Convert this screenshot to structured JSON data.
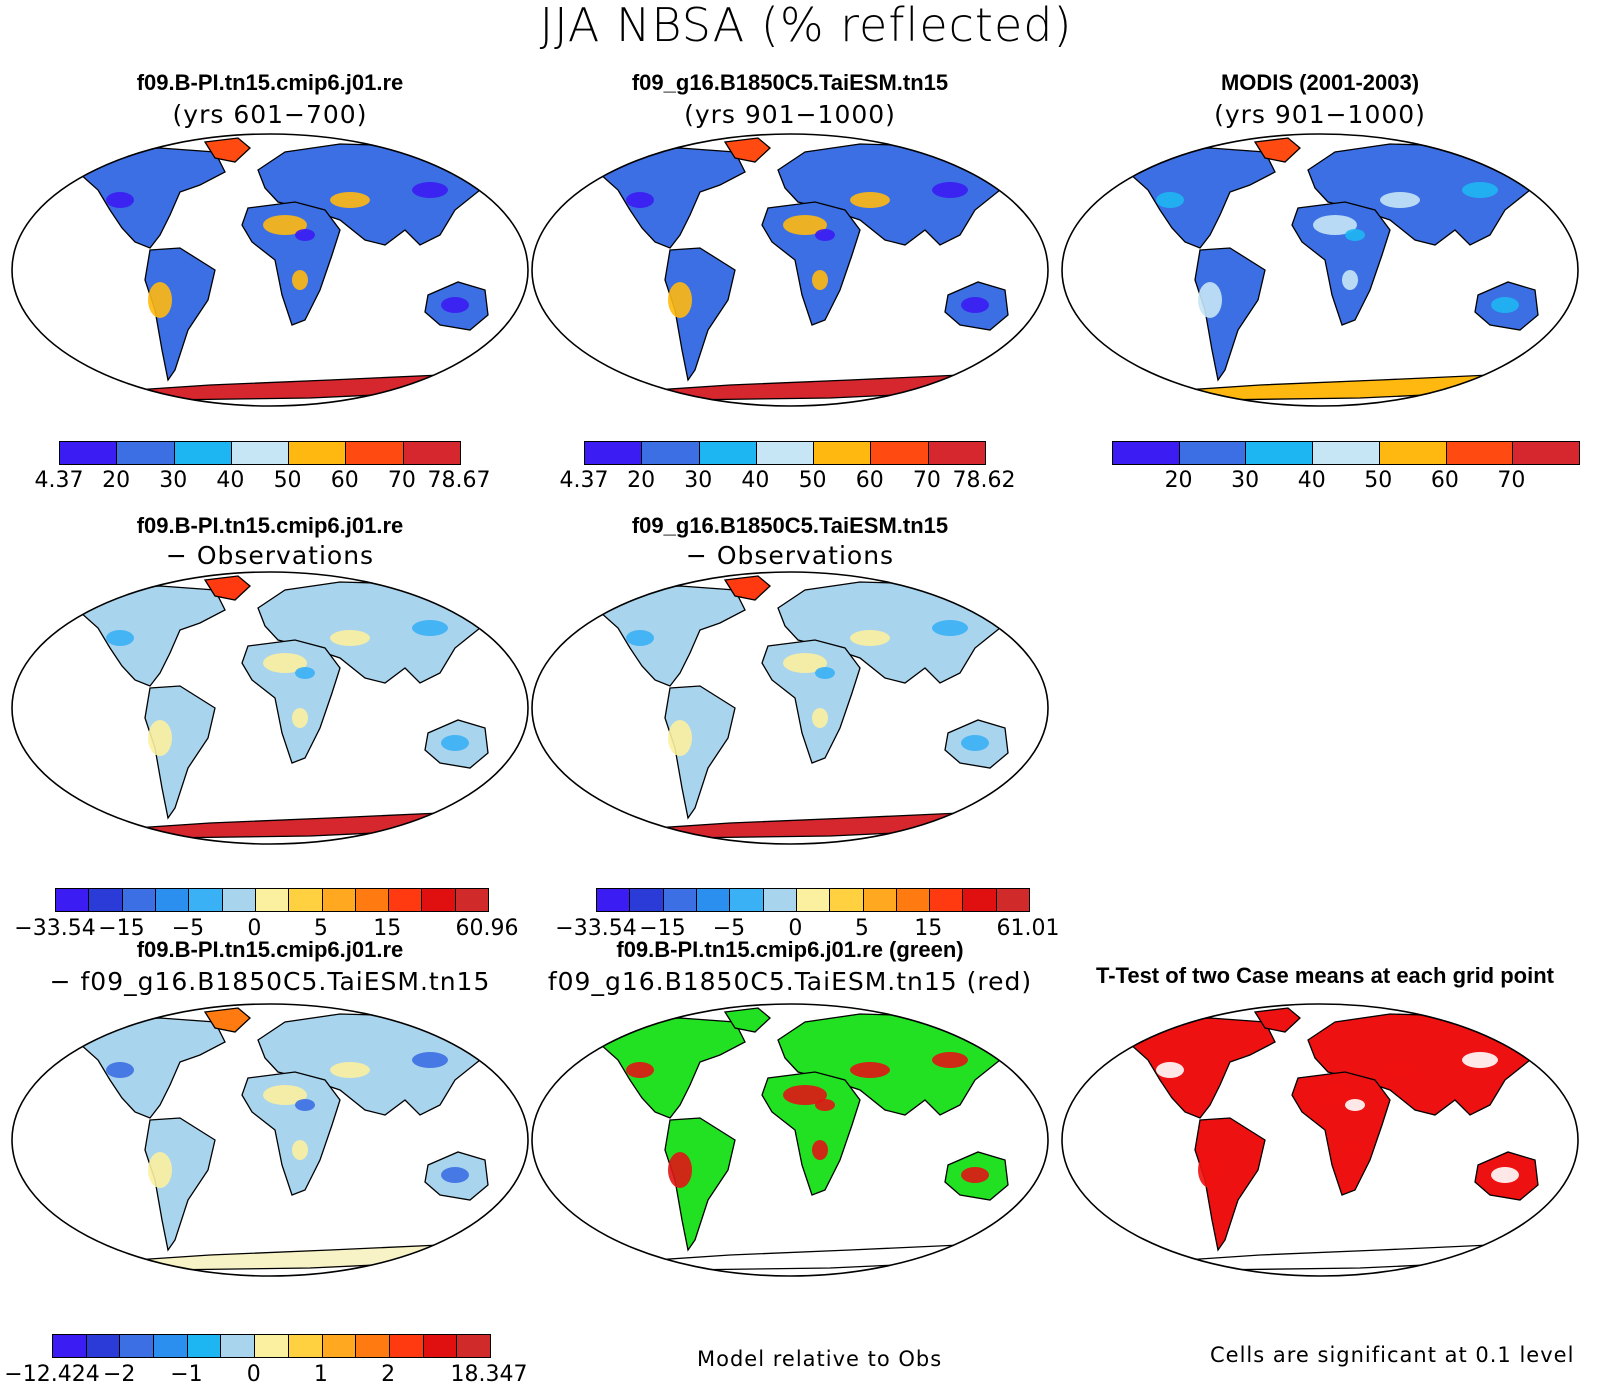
{
  "title": "JJA NBSA (% reflected)",
  "panels": [
    {
      "title": "f09.B-PI.tn15.cmip6.j01.re",
      "subtitle": "(yrs 601−700)",
      "style": "mean"
    },
    {
      "title": "f09_g16.B1850C5.TaiESM.tn15",
      "subtitle": "(yrs 901−1000)",
      "style": "mean"
    },
    {
      "title": "MODIS (2001-2003)",
      "subtitle": "(yrs 901−1000)",
      "style": "obs"
    },
    {
      "title": "f09.B-PI.tn15.cmip6.j01.re",
      "subtitle": "− Observations",
      "style": "diff"
    },
    {
      "title": "f09_g16.B1850C5.TaiESM.tn15",
      "subtitle": "− Observations",
      "style": "diff"
    },
    {
      "title": "f09.B-PI.tn15.cmip6.j01.re",
      "subtitle": "− f09_g16.B1850C5.TaiESM.tn15",
      "style": "casediff"
    },
    {
      "title": "f09.B-PI.tn15.cmip6.j01.re (green)",
      "subtitle": "f09_g16.B1850C5.TaiESM.tn15 (red)",
      "style": "greenred"
    },
    {
      "title": "T-Test of two Case means at each grid point",
      "subtitle": "",
      "style": "ttest"
    }
  ],
  "colorbars": {
    "mean1": {
      "colors": [
        "#3b1cf2",
        "#3c6fe3",
        "#1eb6f2",
        "#c6e6f5",
        "#ffb810",
        "#ff4a12",
        "#d6262e"
      ],
      "labels": [
        "4.37",
        "20",
        "30",
        "40",
        "50",
        "60",
        "70",
        "78.67"
      ]
    },
    "mean2": {
      "colors": [
        "#3b1cf2",
        "#3c6fe3",
        "#1eb6f2",
        "#c6e6f5",
        "#ffb810",
        "#ff4a12",
        "#d6262e"
      ],
      "labels": [
        "4.37",
        "20",
        "30",
        "40",
        "50",
        "60",
        "70",
        "78.62"
      ]
    },
    "obs": {
      "colors": [
        "#3b1cf2",
        "#3c6fe3",
        "#1eb6f2",
        "#c6e6f5",
        "#ffb810",
        "#ff4a12",
        "#d6262e"
      ],
      "labels": [
        "20",
        "30",
        "40",
        "50",
        "60",
        "70"
      ]
    },
    "diff1": {
      "colors": [
        "#3b1cf2",
        "#2a3bd8",
        "#3c6fe3",
        "#2b8ff0",
        "#3ab0f5",
        "#a9d4ee",
        "#fbf0a0",
        "#ffd040",
        "#ffa820",
        "#ff7a10",
        "#ff3a10",
        "#e01010",
        "#d02a2a"
      ],
      "labels": [
        "−33.54",
        "−15",
        "−5",
        "0",
        "5",
        "15",
        "60.96"
      ]
    },
    "diff2": {
      "colors": [
        "#3b1cf2",
        "#2a3bd8",
        "#3c6fe3",
        "#2b8ff0",
        "#3ab0f5",
        "#a9d4ee",
        "#fbf0a0",
        "#ffd040",
        "#ffa820",
        "#ff7a10",
        "#ff3a10",
        "#e01010",
        "#d02a2a"
      ],
      "labels": [
        "−33.54",
        "−15",
        "−5",
        "0",
        "5",
        "15",
        "61.01"
      ]
    },
    "casediff": {
      "colors": [
        "#3b1cf2",
        "#2a3bd8",
        "#3c6fe3",
        "#2b8ff0",
        "#1eb6f2",
        "#a9d4ee",
        "#fbf0a0",
        "#ffd040",
        "#ffa820",
        "#ff7a10",
        "#ff3a10",
        "#e01010",
        "#d02a2a"
      ],
      "labels": [
        "−12.424",
        "−2",
        "−1",
        "0",
        "1",
        "2",
        "18.347"
      ]
    }
  },
  "footers": {
    "greenred": "Model relative to Obs",
    "ttest": "Cells are significant at 0.1 level"
  }
}
